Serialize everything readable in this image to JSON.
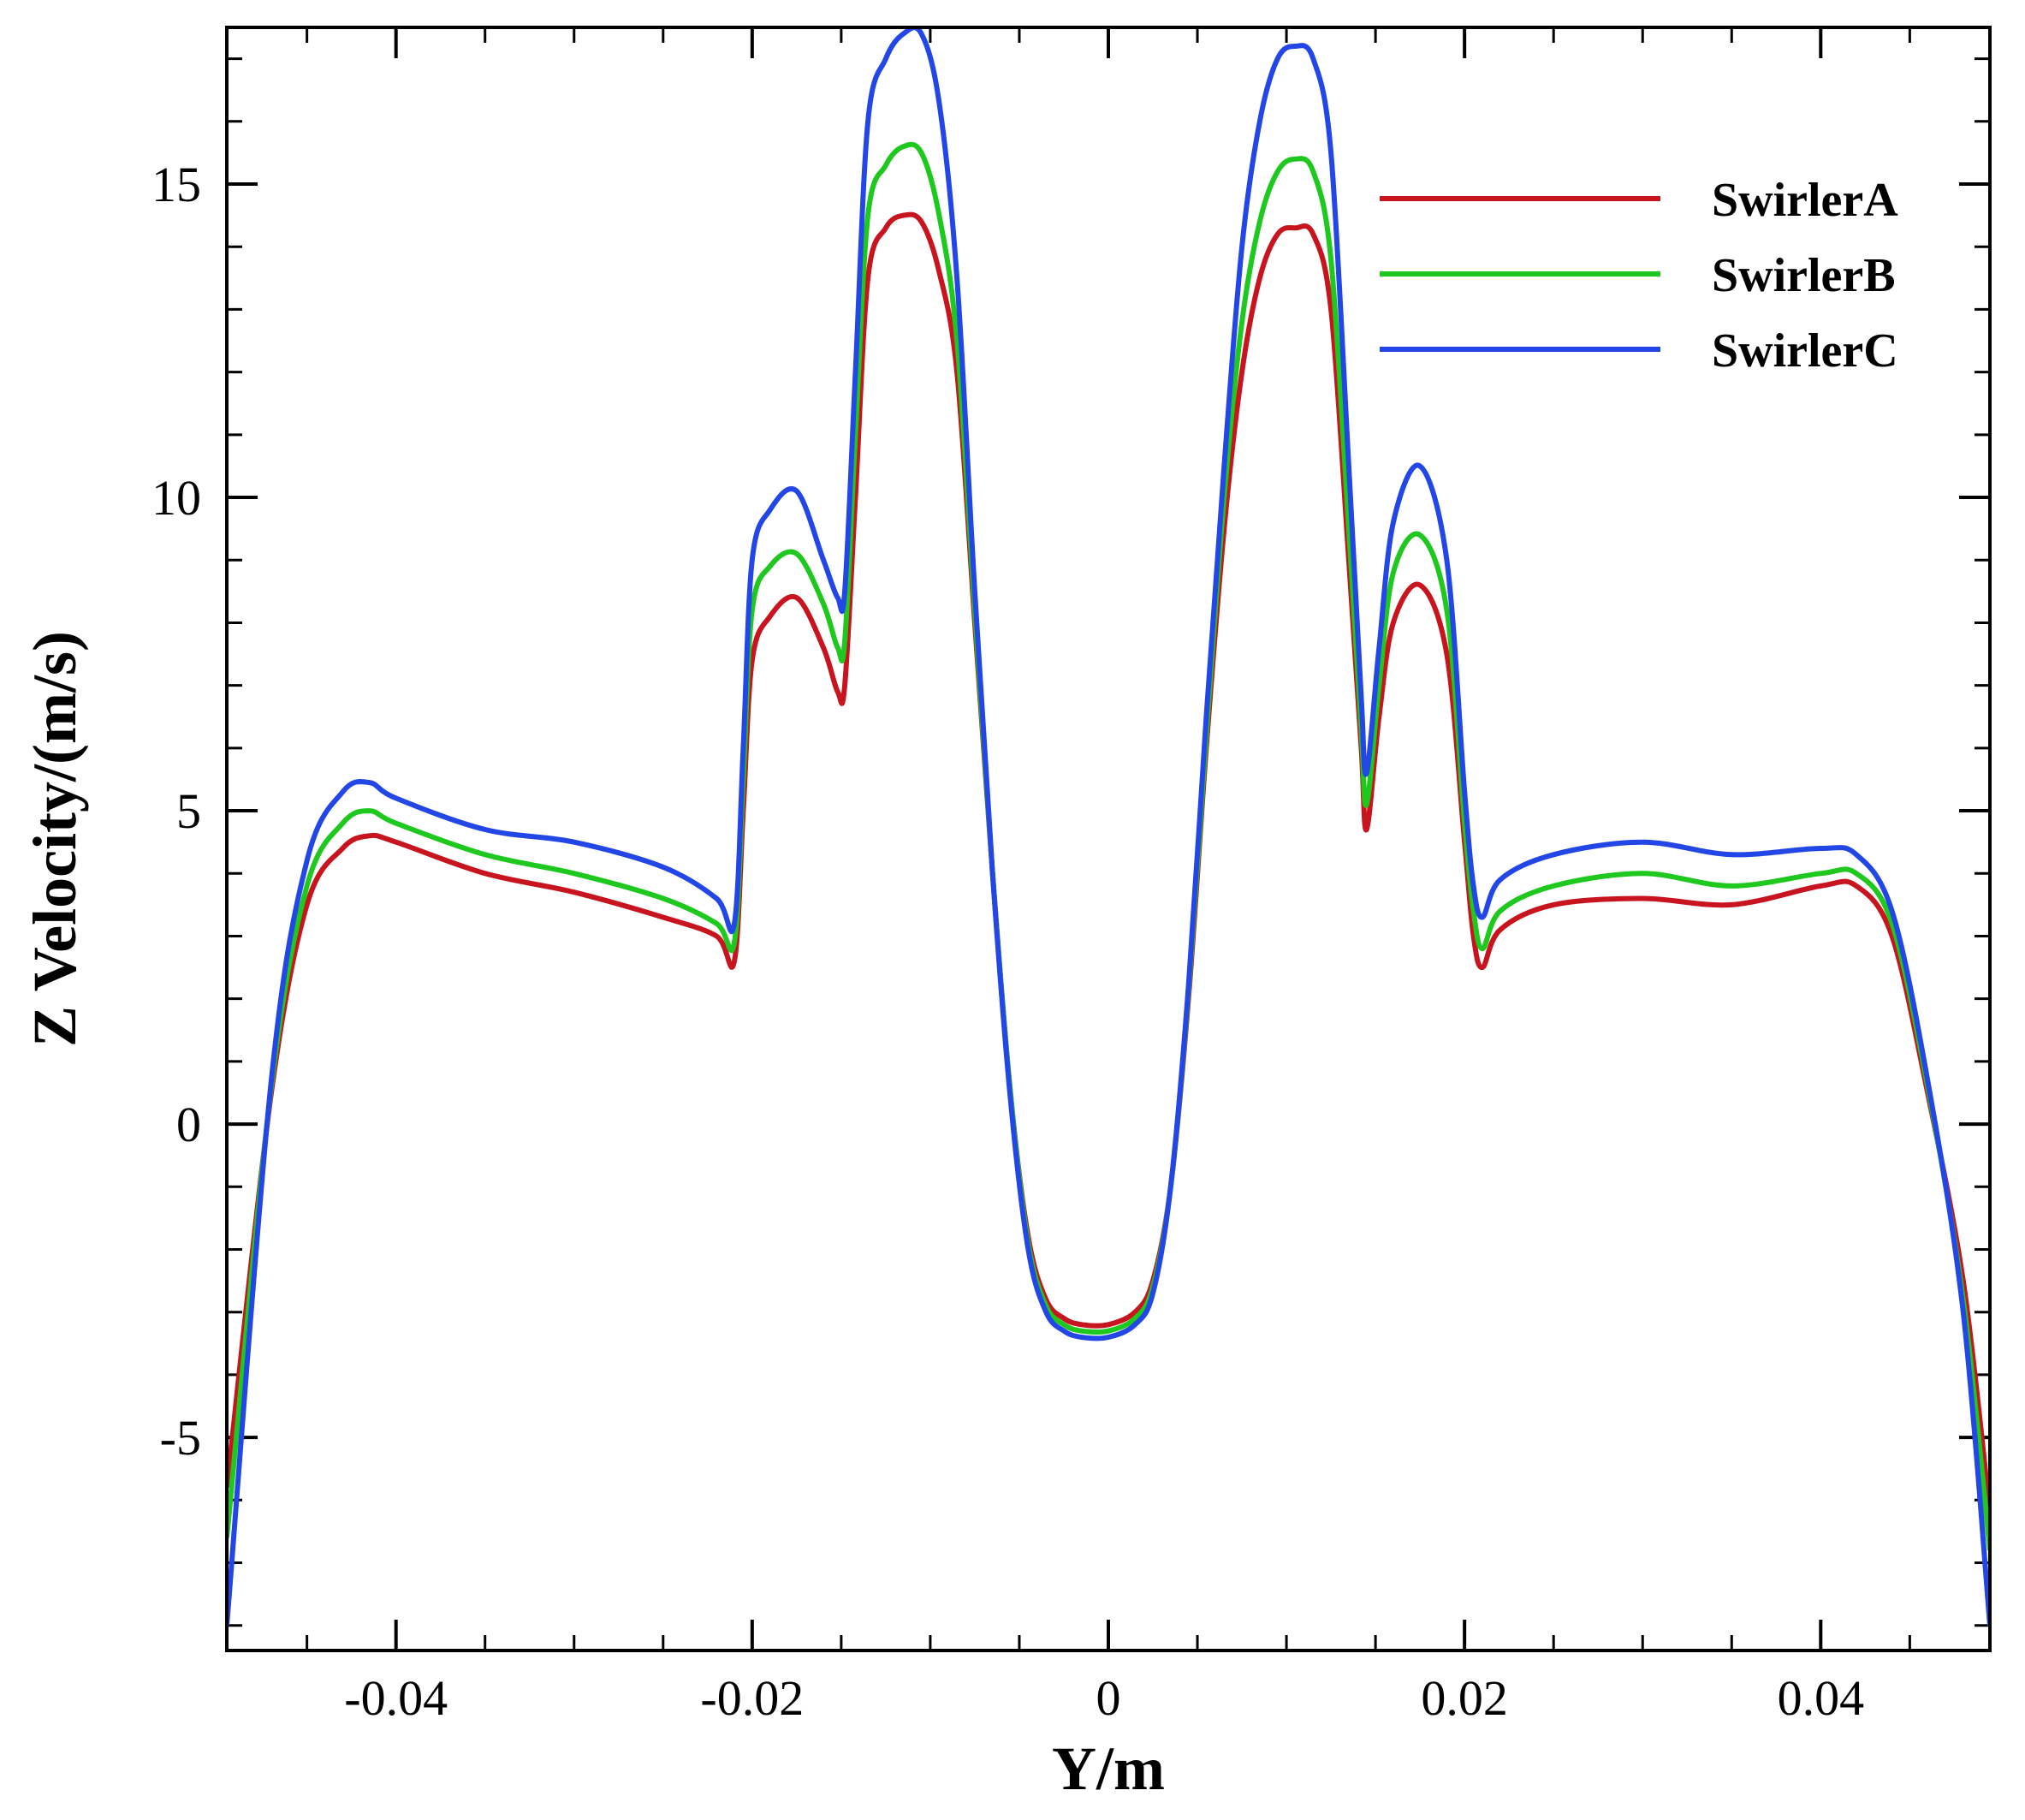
{
  "chart_data": {
    "type": "line",
    "title": "",
    "xlabel": "Y/m",
    "ylabel": "Z Velocity/(m/s)",
    "xlim": [
      -0.0495,
      0.0495
    ],
    "ylim": [
      -8.4,
      17.5
    ],
    "xticks": [
      -0.04,
      -0.02,
      0,
      0.02,
      0.04
    ],
    "xtick_labels": [
      "-0.04",
      "-0.02",
      "0",
      "0.02",
      "0.04"
    ],
    "yticks": [
      -5,
      0,
      5,
      10,
      15
    ],
    "ytick_labels": [
      "-5",
      "0",
      "5",
      "10",
      "15"
    ],
    "x_minor_step": 0.005,
    "y_minor_step": 1,
    "grid": false,
    "legend_position": "top-right",
    "series": [
      {
        "name": "SwirlerA",
        "color": "#c8141e",
        "x": [
          -0.0495,
          -0.047,
          -0.045,
          -0.043,
          -0.0415,
          -0.04,
          -0.035,
          -0.03,
          -0.025,
          -0.022,
          -0.021,
          -0.0205,
          -0.02,
          -0.019,
          -0.0175,
          -0.016,
          -0.0152,
          -0.0148,
          -0.0142,
          -0.0135,
          -0.0125,
          -0.0115,
          -0.0105,
          -0.0095,
          -0.0085,
          -0.0075,
          -0.0065,
          -0.0055,
          -0.0045,
          -0.0035,
          -0.0025,
          -0.0015,
          0,
          0.0015,
          0.0025,
          0.0035,
          0.0045,
          0.0055,
          0.0065,
          0.0075,
          0.0085,
          0.0095,
          0.0105,
          0.0115,
          0.0125,
          0.0135,
          0.0142,
          0.0145,
          0.0152,
          0.016,
          0.0175,
          0.019,
          0.02,
          0.0205,
          0.021,
          0.022,
          0.025,
          0.03,
          0.035,
          0.04,
          0.042,
          0.044,
          0.046,
          0.048,
          0.0495
        ],
        "y": [
          -5.8,
          0.5,
          3.5,
          4.4,
          4.6,
          4.5,
          4.0,
          3.7,
          3.3,
          3.0,
          2.6,
          5.0,
          7.4,
          8.1,
          8.4,
          7.6,
          6.9,
          7.0,
          10.0,
          13.5,
          14.3,
          14.5,
          14.4,
          13.6,
          12.0,
          8.0,
          4.0,
          0.5,
          -1.8,
          -2.8,
          -3.1,
          -3.2,
          -3.2,
          -3.0,
          -2.5,
          -1.0,
          2.0,
          6.0,
          9.5,
          12.0,
          13.5,
          14.2,
          14.3,
          14.2,
          13.0,
          9.0,
          6.0,
          4.7,
          6.5,
          8.0,
          8.6,
          7.5,
          4.5,
          3.0,
          2.5,
          3.1,
          3.5,
          3.6,
          3.5,
          3.8,
          3.8,
          3.0,
          0.5,
          -2.5,
          -6.2
        ]
      },
      {
        "name": "SwirlerB",
        "color": "#1ec81e",
        "x": [
          -0.0495,
          -0.047,
          -0.045,
          -0.043,
          -0.0415,
          -0.04,
          -0.035,
          -0.03,
          -0.025,
          -0.022,
          -0.021,
          -0.0205,
          -0.02,
          -0.019,
          -0.0175,
          -0.016,
          -0.0152,
          -0.0148,
          -0.0142,
          -0.0135,
          -0.0125,
          -0.0115,
          -0.0105,
          -0.0095,
          -0.0085,
          -0.0075,
          -0.0065,
          -0.0055,
          -0.0045,
          -0.0035,
          -0.0025,
          -0.0015,
          0,
          0.0015,
          0.0025,
          0.0035,
          0.0045,
          0.0055,
          0.0065,
          0.0075,
          0.0085,
          0.0095,
          0.0105,
          0.0115,
          0.0125,
          0.0135,
          0.0142,
          0.0145,
          0.0152,
          0.016,
          0.0175,
          0.019,
          0.02,
          0.0205,
          0.021,
          0.022,
          0.025,
          0.03,
          0.035,
          0.04,
          0.042,
          0.044,
          0.046,
          0.048,
          0.0495
        ],
        "y": [
          -6.6,
          0.6,
          3.8,
          4.8,
          5.0,
          4.8,
          4.3,
          4.0,
          3.6,
          3.2,
          2.9,
          5.5,
          8.2,
          8.9,
          9.1,
          8.3,
          7.6,
          7.7,
          11.0,
          14.5,
          15.3,
          15.6,
          15.5,
          14.5,
          12.5,
          8.2,
          4.0,
          0.5,
          -1.9,
          -2.9,
          -3.2,
          -3.3,
          -3.3,
          -3.1,
          -2.6,
          -1.0,
          2.1,
          6.2,
          10.0,
          12.8,
          14.4,
          15.2,
          15.4,
          15.2,
          13.8,
          9.5,
          6.3,
          5.1,
          7.0,
          8.8,
          9.4,
          8.2,
          4.8,
          3.4,
          2.8,
          3.4,
          3.8,
          4.0,
          3.8,
          4.0,
          4.0,
          3.2,
          0.6,
          -2.8,
          -6.8
        ]
      },
      {
        "name": "SwirlerC",
        "color": "#2346e6",
        "x": [
          -0.0495,
          -0.047,
          -0.045,
          -0.043,
          -0.0415,
          -0.04,
          -0.035,
          -0.03,
          -0.025,
          -0.022,
          -0.021,
          -0.0205,
          -0.02,
          -0.019,
          -0.0175,
          -0.016,
          -0.0152,
          -0.0148,
          -0.0142,
          -0.0135,
          -0.0125,
          -0.0115,
          -0.0105,
          -0.0095,
          -0.0085,
          -0.0075,
          -0.0065,
          -0.0055,
          -0.0045,
          -0.0035,
          -0.0025,
          -0.0015,
          0,
          0.0015,
          0.0025,
          0.0035,
          0.0045,
          0.0055,
          0.0065,
          0.0075,
          0.0085,
          0.0095,
          0.0105,
          0.0115,
          0.0125,
          0.0135,
          0.0142,
          0.0145,
          0.0152,
          0.016,
          0.0175,
          0.019,
          0.02,
          0.0205,
          0.021,
          0.022,
          0.025,
          0.03,
          0.035,
          0.04,
          0.042,
          0.044,
          0.046,
          0.048,
          0.0495
        ],
        "y": [
          -8.0,
          0.7,
          4.2,
          5.3,
          5.45,
          5.2,
          4.7,
          4.5,
          4.1,
          3.6,
          3.2,
          6.0,
          9.0,
          9.8,
          10.1,
          9.0,
          8.4,
          8.5,
          12.0,
          16.0,
          17.0,
          17.4,
          17.4,
          16.3,
          13.5,
          8.5,
          4.0,
          0.4,
          -2.0,
          -3.0,
          -3.3,
          -3.4,
          -3.4,
          -3.2,
          -2.7,
          -1.0,
          2.2,
          6.5,
          10.5,
          14.0,
          16.0,
          17.0,
          17.2,
          17.0,
          15.5,
          10.5,
          6.8,
          5.6,
          7.6,
          9.6,
          10.5,
          9.0,
          5.3,
          3.8,
          3.3,
          3.9,
          4.3,
          4.5,
          4.3,
          4.4,
          4.3,
          3.4,
          0.7,
          -3.0,
          -8.0
        ]
      }
    ]
  }
}
